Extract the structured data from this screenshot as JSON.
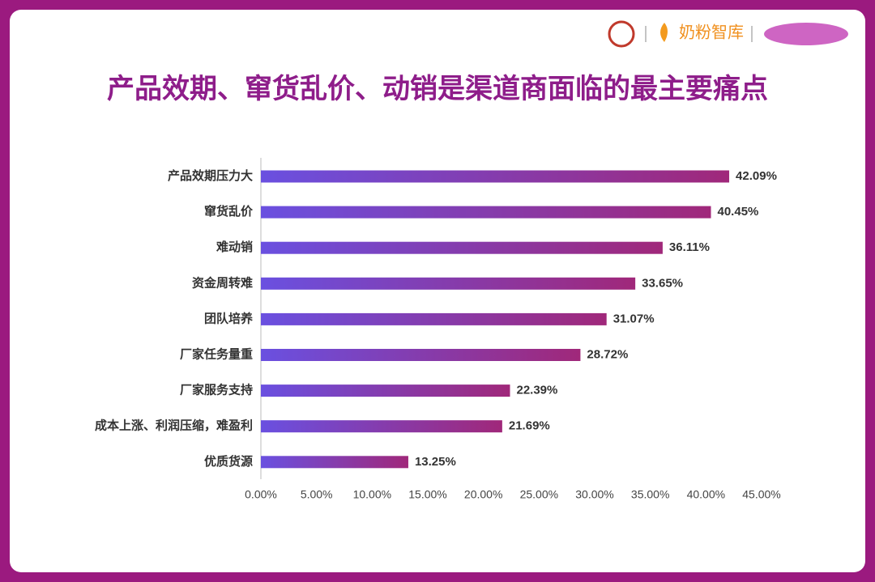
{
  "brand": "奶粉智库",
  "chart_data": {
    "type": "hbar",
    "title": "产品效期、窜货乱价、动销是渠道商面临的最主要痛点",
    "categories": [
      "产品效期压力大",
      "窜货乱价",
      "难动销",
      "资金周转难",
      "团队培养",
      "厂家任务量重",
      "厂家服务支持",
      "成本上涨、利润压缩，难盈利",
      "优质货源"
    ],
    "values": [
      42.09,
      40.45,
      36.11,
      33.65,
      31.07,
      28.72,
      22.39,
      21.69,
      13.25
    ],
    "value_labels": [
      "42.09%",
      "40.45%",
      "36.11%",
      "33.65%",
      "31.07%",
      "28.72%",
      "22.39%",
      "21.69%",
      "13.25%"
    ],
    "gradient": [
      "#6a50e0",
      "#a0287a"
    ],
    "xlim": [
      0,
      45
    ],
    "xticks": [
      {
        "value": 0,
        "label": "0.00%"
      },
      {
        "value": 5,
        "label": "5.00%"
      },
      {
        "value": 10,
        "label": "10.00%"
      },
      {
        "value": 15,
        "label": "15.00%"
      },
      {
        "value": 20,
        "label": "20.00%"
      },
      {
        "value": 25,
        "label": "25.00%"
      },
      {
        "value": 30,
        "label": "30.00%"
      },
      {
        "value": 35,
        "label": "35.00%"
      },
      {
        "value": 40,
        "label": "40.00%"
      },
      {
        "value": 45,
        "label": "45.00%"
      }
    ],
    "grid": false
  }
}
